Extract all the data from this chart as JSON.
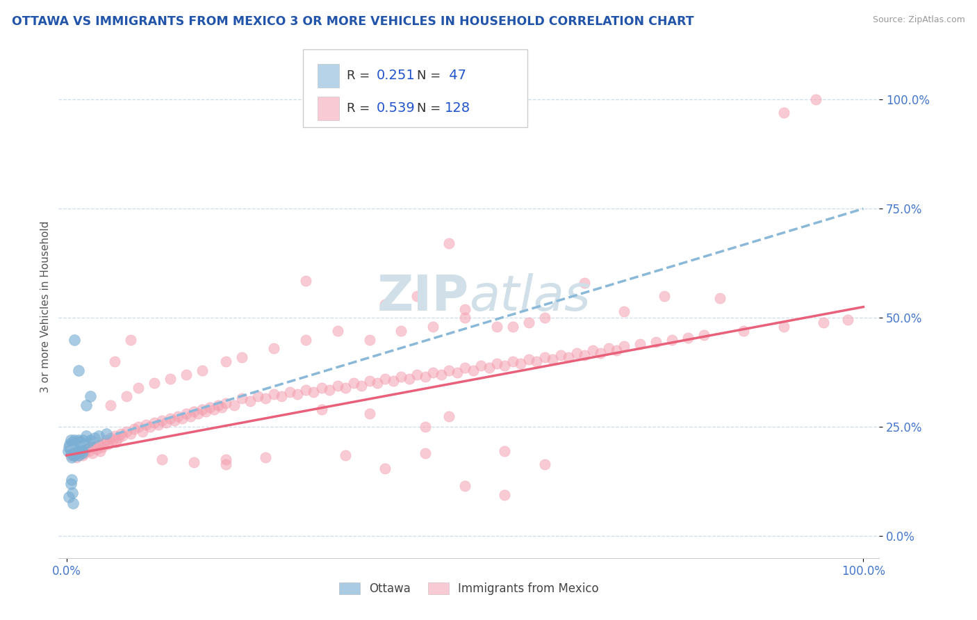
{
  "title": "OTTAWA VS IMMIGRANTS FROM MEXICO 3 OR MORE VEHICLES IN HOUSEHOLD CORRELATION CHART",
  "source": "Source: ZipAtlas.com",
  "ylabel": "3 or more Vehicles in Household",
  "xlim": [
    -0.01,
    1.02
  ],
  "ylim": [
    -0.05,
    1.1
  ],
  "yticks": [
    0.0,
    0.25,
    0.5,
    0.75,
    1.0
  ],
  "ytick_labels": [
    "0.0%",
    "25.0%",
    "50.0%",
    "75.0%",
    "100.0%"
  ],
  "xticks": [
    0.0,
    1.0
  ],
  "xtick_labels": [
    "0.0%",
    "100.0%"
  ],
  "blue_scatter_color": "#7bafd4",
  "pink_scatter_color": "#f4a0b0",
  "trend_blue_color": "#8ab8d8",
  "trend_pink_color": "#e8607a",
  "background_color": "#ffffff",
  "grid_color": "#c8d8e8",
  "watermark_color": "#d0dfe8",
  "title_color": "#2255aa",
  "source_color": "#999999",
  "axis_tick_color": "#4477cc",
  "legend_text_dark": "#333333",
  "legend_text_blue": "#2255cc",
  "ottawa_trend_x": [
    0.0,
    1.0
  ],
  "ottawa_trend_y": [
    0.2,
    0.75
  ],
  "mexico_trend_x": [
    0.0,
    1.0
  ],
  "mexico_trend_y": [
    0.185,
    0.525
  ],
  "ottawa_points": [
    [
      0.002,
      0.195
    ],
    [
      0.003,
      0.205
    ],
    [
      0.004,
      0.21
    ],
    [
      0.005,
      0.195
    ],
    [
      0.005,
      0.22
    ],
    [
      0.006,
      0.18
    ],
    [
      0.006,
      0.2
    ],
    [
      0.007,
      0.19
    ],
    [
      0.007,
      0.215
    ],
    [
      0.008,
      0.2
    ],
    [
      0.008,
      0.185
    ],
    [
      0.009,
      0.21
    ],
    [
      0.009,
      0.195
    ],
    [
      0.01,
      0.2
    ],
    [
      0.01,
      0.22
    ],
    [
      0.011,
      0.195
    ],
    [
      0.011,
      0.185
    ],
    [
      0.012,
      0.205
    ],
    [
      0.012,
      0.19
    ],
    [
      0.013,
      0.215
    ],
    [
      0.013,
      0.2
    ],
    [
      0.014,
      0.21
    ],
    [
      0.014,
      0.195
    ],
    [
      0.015,
      0.22
    ],
    [
      0.015,
      0.185
    ],
    [
      0.016,
      0.2
    ],
    [
      0.017,
      0.205
    ],
    [
      0.018,
      0.215
    ],
    [
      0.019,
      0.19
    ],
    [
      0.02,
      0.22
    ],
    [
      0.02,
      0.195
    ],
    [
      0.022,
      0.21
    ],
    [
      0.025,
      0.23
    ],
    [
      0.027,
      0.215
    ],
    [
      0.03,
      0.22
    ],
    [
      0.035,
      0.225
    ],
    [
      0.04,
      0.23
    ],
    [
      0.05,
      0.235
    ],
    [
      0.025,
      0.3
    ],
    [
      0.03,
      0.32
    ],
    [
      0.015,
      0.38
    ],
    [
      0.01,
      0.45
    ],
    [
      0.005,
      0.12
    ],
    [
      0.006,
      0.13
    ],
    [
      0.007,
      0.1
    ],
    [
      0.003,
      0.09
    ],
    [
      0.008,
      0.075
    ]
  ],
  "mexico_points": [
    [
      0.005,
      0.185
    ],
    [
      0.008,
      0.19
    ],
    [
      0.01,
      0.195
    ],
    [
      0.012,
      0.18
    ],
    [
      0.015,
      0.2
    ],
    [
      0.018,
      0.195
    ],
    [
      0.02,
      0.185
    ],
    [
      0.022,
      0.19
    ],
    [
      0.025,
      0.2
    ],
    [
      0.028,
      0.195
    ],
    [
      0.03,
      0.205
    ],
    [
      0.032,
      0.19
    ],
    [
      0.035,
      0.215
    ],
    [
      0.038,
      0.2
    ],
    [
      0.04,
      0.21
    ],
    [
      0.042,
      0.195
    ],
    [
      0.045,
      0.205
    ],
    [
      0.048,
      0.215
    ],
    [
      0.05,
      0.22
    ],
    [
      0.052,
      0.21
    ],
    [
      0.055,
      0.225
    ],
    [
      0.058,
      0.22
    ],
    [
      0.06,
      0.23
    ],
    [
      0.062,
      0.215
    ],
    [
      0.065,
      0.225
    ],
    [
      0.068,
      0.235
    ],
    [
      0.07,
      0.23
    ],
    [
      0.075,
      0.24
    ],
    [
      0.08,
      0.235
    ],
    [
      0.085,
      0.245
    ],
    [
      0.09,
      0.25
    ],
    [
      0.095,
      0.24
    ],
    [
      0.1,
      0.255
    ],
    [
      0.105,
      0.25
    ],
    [
      0.11,
      0.26
    ],
    [
      0.115,
      0.255
    ],
    [
      0.12,
      0.265
    ],
    [
      0.125,
      0.26
    ],
    [
      0.13,
      0.27
    ],
    [
      0.135,
      0.265
    ],
    [
      0.14,
      0.275
    ],
    [
      0.145,
      0.27
    ],
    [
      0.15,
      0.28
    ],
    [
      0.155,
      0.275
    ],
    [
      0.16,
      0.285
    ],
    [
      0.165,
      0.28
    ],
    [
      0.17,
      0.29
    ],
    [
      0.175,
      0.285
    ],
    [
      0.18,
      0.295
    ],
    [
      0.185,
      0.29
    ],
    [
      0.19,
      0.3
    ],
    [
      0.195,
      0.295
    ],
    [
      0.2,
      0.305
    ],
    [
      0.21,
      0.3
    ],
    [
      0.22,
      0.315
    ],
    [
      0.23,
      0.31
    ],
    [
      0.24,
      0.32
    ],
    [
      0.25,
      0.315
    ],
    [
      0.26,
      0.325
    ],
    [
      0.27,
      0.32
    ],
    [
      0.28,
      0.33
    ],
    [
      0.29,
      0.325
    ],
    [
      0.3,
      0.335
    ],
    [
      0.31,
      0.33
    ],
    [
      0.32,
      0.34
    ],
    [
      0.33,
      0.335
    ],
    [
      0.34,
      0.345
    ],
    [
      0.35,
      0.34
    ],
    [
      0.36,
      0.35
    ],
    [
      0.37,
      0.345
    ],
    [
      0.38,
      0.355
    ],
    [
      0.39,
      0.35
    ],
    [
      0.4,
      0.36
    ],
    [
      0.41,
      0.355
    ],
    [
      0.42,
      0.365
    ],
    [
      0.43,
      0.36
    ],
    [
      0.44,
      0.37
    ],
    [
      0.45,
      0.365
    ],
    [
      0.46,
      0.375
    ],
    [
      0.47,
      0.37
    ],
    [
      0.48,
      0.38
    ],
    [
      0.49,
      0.375
    ],
    [
      0.5,
      0.385
    ],
    [
      0.51,
      0.38
    ],
    [
      0.52,
      0.39
    ],
    [
      0.53,
      0.385
    ],
    [
      0.54,
      0.395
    ],
    [
      0.55,
      0.39
    ],
    [
      0.56,
      0.4
    ],
    [
      0.57,
      0.395
    ],
    [
      0.58,
      0.405
    ],
    [
      0.59,
      0.4
    ],
    [
      0.6,
      0.41
    ],
    [
      0.61,
      0.405
    ],
    [
      0.62,
      0.415
    ],
    [
      0.63,
      0.41
    ],
    [
      0.64,
      0.42
    ],
    [
      0.65,
      0.415
    ],
    [
      0.66,
      0.425
    ],
    [
      0.67,
      0.42
    ],
    [
      0.68,
      0.43
    ],
    [
      0.69,
      0.425
    ],
    [
      0.7,
      0.435
    ],
    [
      0.72,
      0.44
    ],
    [
      0.74,
      0.445
    ],
    [
      0.76,
      0.45
    ],
    [
      0.78,
      0.455
    ],
    [
      0.8,
      0.46
    ],
    [
      0.85,
      0.47
    ],
    [
      0.9,
      0.48
    ],
    [
      0.95,
      0.49
    ],
    [
      0.98,
      0.495
    ],
    [
      0.055,
      0.3
    ],
    [
      0.075,
      0.32
    ],
    [
      0.09,
      0.34
    ],
    [
      0.11,
      0.35
    ],
    [
      0.13,
      0.36
    ],
    [
      0.15,
      0.37
    ],
    [
      0.17,
      0.38
    ],
    [
      0.2,
      0.4
    ],
    [
      0.22,
      0.41
    ],
    [
      0.26,
      0.43
    ],
    [
      0.3,
      0.45
    ],
    [
      0.34,
      0.47
    ],
    [
      0.38,
      0.45
    ],
    [
      0.42,
      0.47
    ],
    [
      0.46,
      0.48
    ],
    [
      0.5,
      0.5
    ],
    [
      0.54,
      0.48
    ],
    [
      0.58,
      0.49
    ],
    [
      0.12,
      0.175
    ],
    [
      0.16,
      0.17
    ],
    [
      0.2,
      0.175
    ],
    [
      0.25,
      0.18
    ],
    [
      0.35,
      0.185
    ],
    [
      0.45,
      0.19
    ],
    [
      0.55,
      0.195
    ],
    [
      0.45,
      0.25
    ],
    [
      0.48,
      0.275
    ],
    [
      0.38,
      0.28
    ],
    [
      0.32,
      0.29
    ],
    [
      0.06,
      0.4
    ],
    [
      0.08,
      0.45
    ],
    [
      0.4,
      0.53
    ],
    [
      0.44,
      0.55
    ],
    [
      0.5,
      0.52
    ],
    [
      0.6,
      0.5
    ],
    [
      0.56,
      0.48
    ],
    [
      0.7,
      0.515
    ],
    [
      0.9,
      0.97
    ],
    [
      0.94,
      1.0
    ],
    [
      0.48,
      0.67
    ],
    [
      0.3,
      0.585
    ],
    [
      0.65,
      0.58
    ],
    [
      0.75,
      0.55
    ],
    [
      0.82,
      0.545
    ],
    [
      0.2,
      0.165
    ],
    [
      0.6,
      0.165
    ],
    [
      0.4,
      0.155
    ],
    [
      0.5,
      0.115
    ],
    [
      0.55,
      0.095
    ]
  ]
}
